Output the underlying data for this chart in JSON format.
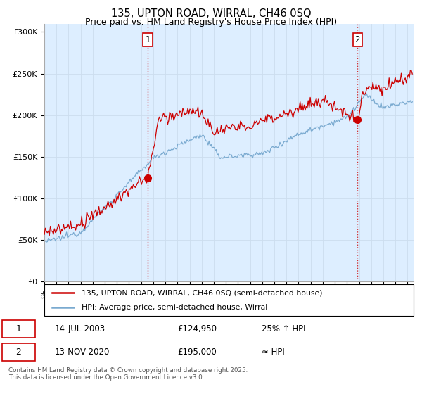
{
  "title": "135, UPTON ROAD, WIRRAL, CH46 0SQ",
  "subtitle": "Price paid vs. HM Land Registry's House Price Index (HPI)",
  "ylabel_ticks": [
    "£0",
    "£50K",
    "£100K",
    "£150K",
    "£200K",
    "£250K",
    "£300K"
  ],
  "ytick_values": [
    0,
    50000,
    100000,
    150000,
    200000,
    250000,
    300000
  ],
  "ylim": [
    0,
    310000
  ],
  "xlim_start": 1995.0,
  "xlim_end": 2025.5,
  "red_line_color": "#cc0000",
  "blue_line_color": "#7aaad0",
  "plot_bg_color": "#ddeeff",
  "marker1_date": 2003.54,
  "marker1_value": 124950,
  "marker2_date": 2020.87,
  "marker2_value": 195000,
  "vline_color": "#cc0000",
  "legend_line1": "135, UPTON ROAD, WIRRAL, CH46 0SQ (semi-detached house)",
  "legend_line2": "HPI: Average price, semi-detached house, Wirral",
  "table_row1_num": "1",
  "table_row1_date": "14-JUL-2003",
  "table_row1_price": "£124,950",
  "table_row1_hpi": "25% ↑ HPI",
  "table_row2_num": "2",
  "table_row2_date": "13-NOV-2020",
  "table_row2_price": "£195,000",
  "table_row2_hpi": "≈ HPI",
  "footnote": "Contains HM Land Registry data © Crown copyright and database right 2025.\nThis data is licensed under the Open Government Licence v3.0.",
  "background_color": "#ffffff",
  "grid_color": "#ccddee"
}
